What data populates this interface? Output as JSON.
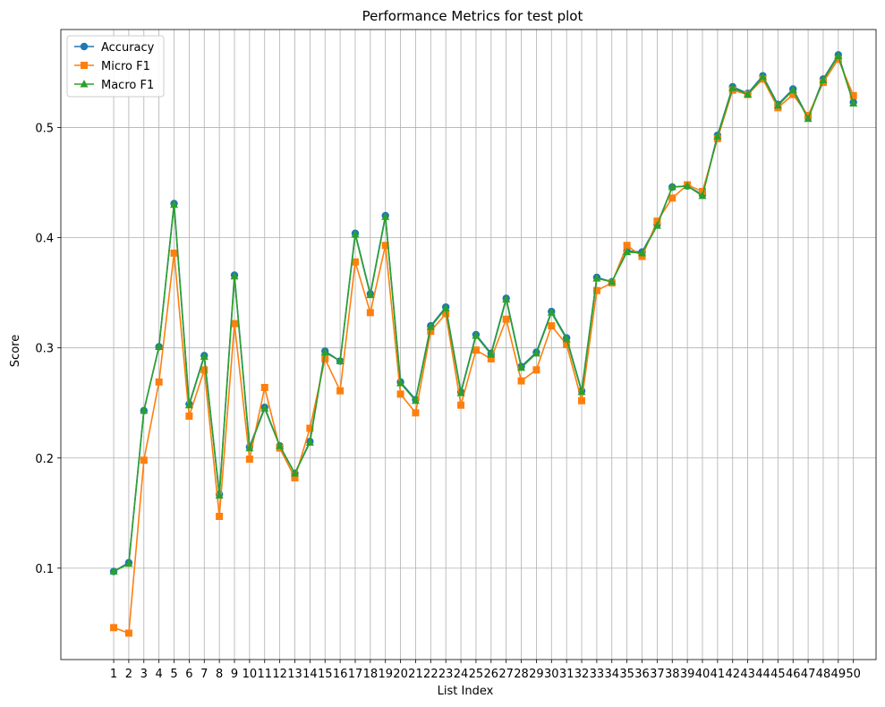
{
  "chart_data": {
    "type": "line",
    "title": "Performance Metrics for test plot",
    "xlabel": "List Index",
    "ylabel": "Score",
    "grid": true,
    "legend_placement": "top-left",
    "ylim": [
      0.017,
      0.589
    ],
    "xlim": [
      -2.5,
      51.5
    ],
    "y_ticks": [
      0.1,
      0.2,
      0.3,
      0.4,
      0.5
    ],
    "x": [
      1,
      2,
      3,
      4,
      5,
      6,
      7,
      8,
      9,
      10,
      11,
      12,
      13,
      14,
      15,
      16,
      17,
      18,
      19,
      20,
      21,
      22,
      23,
      24,
      25,
      26,
      27,
      28,
      29,
      30,
      31,
      32,
      33,
      34,
      35,
      36,
      37,
      38,
      39,
      40,
      41,
      42,
      43,
      44,
      45,
      46,
      47,
      48,
      49,
      50
    ],
    "series": [
      {
        "name": "Accuracy",
        "color": "#1f77b4",
        "marker": "circle",
        "values": [
          0.097,
          0.105,
          0.243,
          0.301,
          0.431,
          0.249,
          0.293,
          0.167,
          0.366,
          0.21,
          0.246,
          0.211,
          0.186,
          0.215,
          0.297,
          0.288,
          0.404,
          0.349,
          0.42,
          0.269,
          0.253,
          0.32,
          0.337,
          0.26,
          0.312,
          0.295,
          0.345,
          0.283,
          0.296,
          0.333,
          0.309,
          0.261,
          0.364,
          0.36,
          0.388,
          0.387,
          0.412,
          0.446,
          0.447,
          0.439,
          0.493,
          0.537,
          0.531,
          0.547,
          0.521,
          0.535,
          0.509,
          0.544,
          0.566,
          0.523
        ]
      },
      {
        "name": "Micro F1",
        "color": "#ff7f0e",
        "marker": "square",
        "values": [
          0.046,
          0.041,
          0.198,
          0.269,
          0.386,
          0.238,
          0.28,
          0.147,
          0.322,
          0.199,
          0.264,
          0.209,
          0.182,
          0.227,
          0.29,
          0.261,
          0.378,
          0.332,
          0.393,
          0.258,
          0.241,
          0.315,
          0.331,
          0.248,
          0.298,
          0.29,
          0.326,
          0.27,
          0.28,
          0.32,
          0.303,
          0.252,
          0.352,
          0.359,
          0.393,
          0.383,
          0.415,
          0.436,
          0.448,
          0.442,
          0.49,
          0.534,
          0.53,
          0.544,
          0.518,
          0.53,
          0.511,
          0.541,
          0.562,
          0.529
        ]
      },
      {
        "name": "Macro F1",
        "color": "#2ca02c",
        "marker": "triangle",
        "values": [
          0.097,
          0.104,
          0.243,
          0.301,
          0.43,
          0.248,
          0.292,
          0.166,
          0.365,
          0.209,
          0.245,
          0.211,
          0.186,
          0.214,
          0.296,
          0.288,
          0.403,
          0.348,
          0.419,
          0.268,
          0.252,
          0.319,
          0.336,
          0.259,
          0.311,
          0.294,
          0.344,
          0.282,
          0.295,
          0.332,
          0.308,
          0.26,
          0.363,
          0.36,
          0.387,
          0.386,
          0.411,
          0.446,
          0.447,
          0.438,
          0.492,
          0.536,
          0.53,
          0.546,
          0.52,
          0.534,
          0.508,
          0.543,
          0.565,
          0.522
        ]
      }
    ]
  }
}
